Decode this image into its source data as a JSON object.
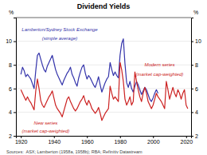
{
  "chart_data": {
    "type": "line",
    "title": "Dividend Yields",
    "ylabel": "%",
    "y2label": "%",
    "sources": "Sources:  ASX; Lamberton (1958a, 1958b); RBA; Refinitiv Datastream",
    "xlim": [
      1917,
      2023
    ],
    "xticks": [
      1920,
      1940,
      1960,
      1980,
      2000,
      2020
    ],
    "ylim": [
      2,
      12
    ],
    "yticks": [
      2,
      4,
      6,
      8,
      10
    ],
    "y2lim": [
      2,
      12
    ],
    "y2ticks": [
      2,
      4,
      6,
      8,
      10
    ],
    "grid": true,
    "annotations": [
      {
        "text": "Lamberton/Sydney Stock Exchange",
        "color": "#3333aa"
      },
      {
        "text": "(simple average)",
        "color": "#3333aa"
      },
      {
        "text": "New series",
        "color": "#cc2222"
      },
      {
        "text": "(market cap-weighted)",
        "color": "#cc2222"
      },
      {
        "text": "Modern series",
        "color": "#cc2222"
      },
      {
        "text": "(market cap-weighted)",
        "color": "#cc2222"
      }
    ],
    "series": [
      {
        "color": "#3333aa",
        "x": [
          1920,
          1921,
          1922,
          1923,
          1924,
          1925,
          1926,
          1927,
          1928,
          1929,
          1930,
          1931,
          1932,
          1933,
          1934,
          1935,
          1936,
          1937,
          1938,
          1939,
          1940,
          1941,
          1942,
          1943,
          1944,
          1945,
          1946,
          1947,
          1948,
          1949,
          1950,
          1951,
          1952,
          1953,
          1954,
          1955,
          1956,
          1957,
          1958,
          1959,
          1960,
          1961,
          1962,
          1963,
          1964,
          1965,
          1966,
          1967,
          1968,
          1969,
          1970,
          1971,
          1972,
          1973,
          1974,
          1975,
          1976,
          1977,
          1978,
          1979,
          1980,
          1981,
          1982,
          1983,
          1984,
          1985,
          1986,
          1987,
          1988,
          1989,
          1990,
          1991,
          1992,
          1993,
          1994,
          1995,
          1996,
          1997,
          1998,
          1999,
          2000,
          2001,
          2002,
          2003
        ],
        "values": [
          7.2,
          7.8,
          7.5,
          7.0,
          7.2,
          7.0,
          6.8,
          6.4,
          6.0,
          7.5,
          8.8,
          9.0,
          8.5,
          8.0,
          7.6,
          7.4,
          7.9,
          8.2,
          8.5,
          8.8,
          8.2,
          7.6,
          7.2,
          6.9,
          6.6,
          6.3,
          6.7,
          7.0,
          7.3,
          7.5,
          7.8,
          7.2,
          6.9,
          6.5,
          6.2,
          6.9,
          7.4,
          7.8,
          8.0,
          7.3,
          6.8,
          7.1,
          6.9,
          6.6,
          6.3,
          6.1,
          6.5,
          7.0,
          6.3,
          5.7,
          6.1,
          6.5,
          6.8,
          7.0,
          8.2,
          7.6,
          7.1,
          7.4,
          7.1,
          6.9,
          8.8,
          9.8,
          10.2,
          8.1,
          6.5,
          6.1,
          6.6,
          6.0,
          5.7,
          6.2,
          6.6,
          6.3,
          5.9,
          5.5,
          5.8,
          6.1,
          5.9,
          5.5,
          5.1,
          4.9,
          5.2,
          5.6,
          5.9,
          5.6
        ]
      },
      {
        "color": "#cc2222",
        "x": [
          1920,
          1921,
          1922,
          1923,
          1924,
          1925,
          1926,
          1927,
          1928,
          1929,
          1930,
          1931,
          1932,
          1933,
          1934,
          1935,
          1936,
          1937,
          1938,
          1939,
          1940,
          1941,
          1942,
          1943,
          1944,
          1945,
          1946,
          1947,
          1948,
          1949,
          1950,
          1951,
          1952,
          1953,
          1954,
          1955,
          1956,
          1957,
          1958,
          1959,
          1960,
          1961,
          1962,
          1963,
          1964,
          1965,
          1966,
          1967,
          1968,
          1969,
          1970,
          1971,
          1972,
          1973,
          1974,
          1975,
          1976,
          1977,
          1978,
          1979,
          1980
        ],
        "values": [
          5.9,
          5.6,
          5.3,
          5.0,
          5.3,
          5.0,
          4.8,
          4.5,
          4.2,
          5.8,
          6.8,
          6.0,
          5.0,
          4.6,
          4.4,
          4.7,
          5.0,
          5.3,
          5.5,
          5.8,
          5.2,
          4.6,
          4.3,
          4.1,
          3.9,
          3.6,
          4.1,
          4.6,
          5.1,
          5.3,
          4.9,
          4.6,
          4.3,
          4.1,
          4.3,
          4.6,
          4.9,
          5.1,
          5.4,
          4.9,
          4.6,
          5.0,
          4.7,
          4.3,
          4.1,
          3.9,
          4.1,
          4.4,
          3.9,
          3.3,
          3.6,
          3.9,
          4.1,
          4.3,
          6.2,
          5.6,
          5.1,
          5.3,
          5.1,
          4.9,
          8.2
        ]
      },
      {
        "color": "#cc2222",
        "x": [
          1980,
          1981,
          1982,
          1983,
          1984,
          1985,
          1986,
          1987,
          1988,
          1989,
          1990,
          1991,
          1992,
          1993,
          1994,
          1995,
          1996,
          1997,
          1998,
          1999,
          2000,
          2001,
          2002,
          2003,
          2004,
          2005,
          2006,
          2007,
          2008,
          2009,
          2010,
          2011,
          2012,
          2013,
          2014,
          2015,
          2016,
          2017,
          2018,
          2019,
          2020,
          2021
        ],
        "values": [
          8.2,
          7.6,
          6.6,
          5.1,
          4.6,
          4.9,
          5.3,
          4.6,
          4.9,
          7.4,
          6.6,
          5.9,
          5.3,
          4.9,
          5.6,
          6.1,
          5.6,
          4.9,
          4.6,
          4.3,
          4.6,
          5.1,
          5.6,
          5.3,
          5.1,
          4.9,
          4.6,
          4.3,
          6.6,
          5.9,
          5.1,
          5.6,
          6.1,
          5.6,
          5.3,
          5.9,
          5.6,
          5.1,
          5.6,
          5.9,
          4.6,
          4.3
        ]
      }
    ]
  }
}
